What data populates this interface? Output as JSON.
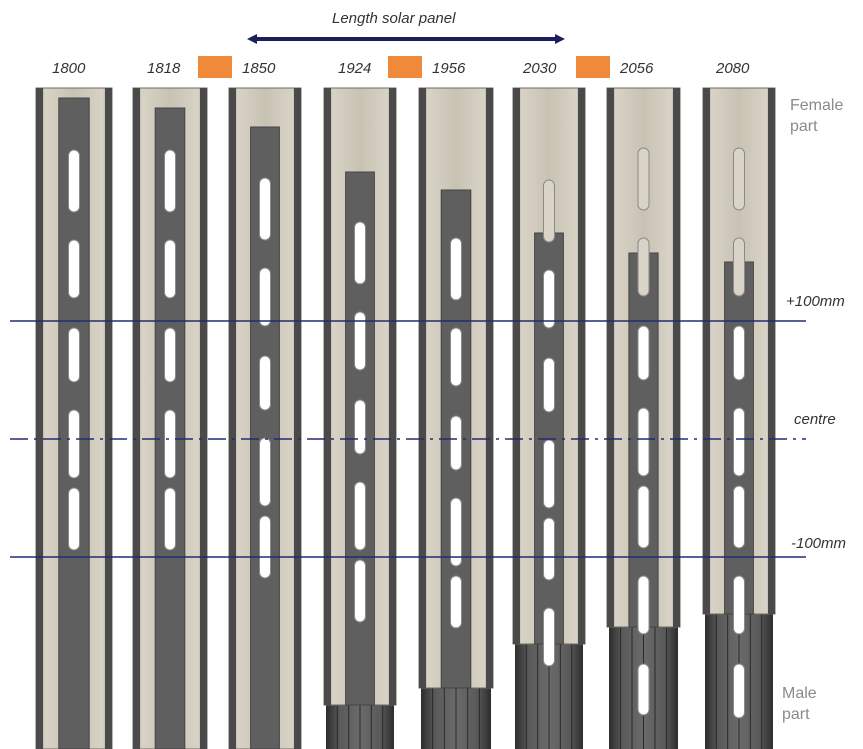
{
  "title": "Length solar panel",
  "profiles": [
    {
      "label": "1800"
    },
    {
      "label": "1818"
    },
    {
      "label": "1850"
    },
    {
      "label": "1924"
    },
    {
      "label": "1956"
    },
    {
      "label": "2030"
    },
    {
      "label": "2056"
    },
    {
      "label": "2080"
    }
  ],
  "reference_lines": {
    "top": "+100mm",
    "centre": "centre",
    "bottom": "-100mm"
  },
  "side_labels": {
    "female": [
      "Female",
      "part"
    ],
    "male": [
      "Male",
      "part"
    ]
  },
  "colors": {
    "spacer": "#f08a3a",
    "arrow": "#1b1f5c",
    "line": "#232a72",
    "male_profile": "#5e5e5e",
    "female_profile": "#c9c3b5"
  }
}
